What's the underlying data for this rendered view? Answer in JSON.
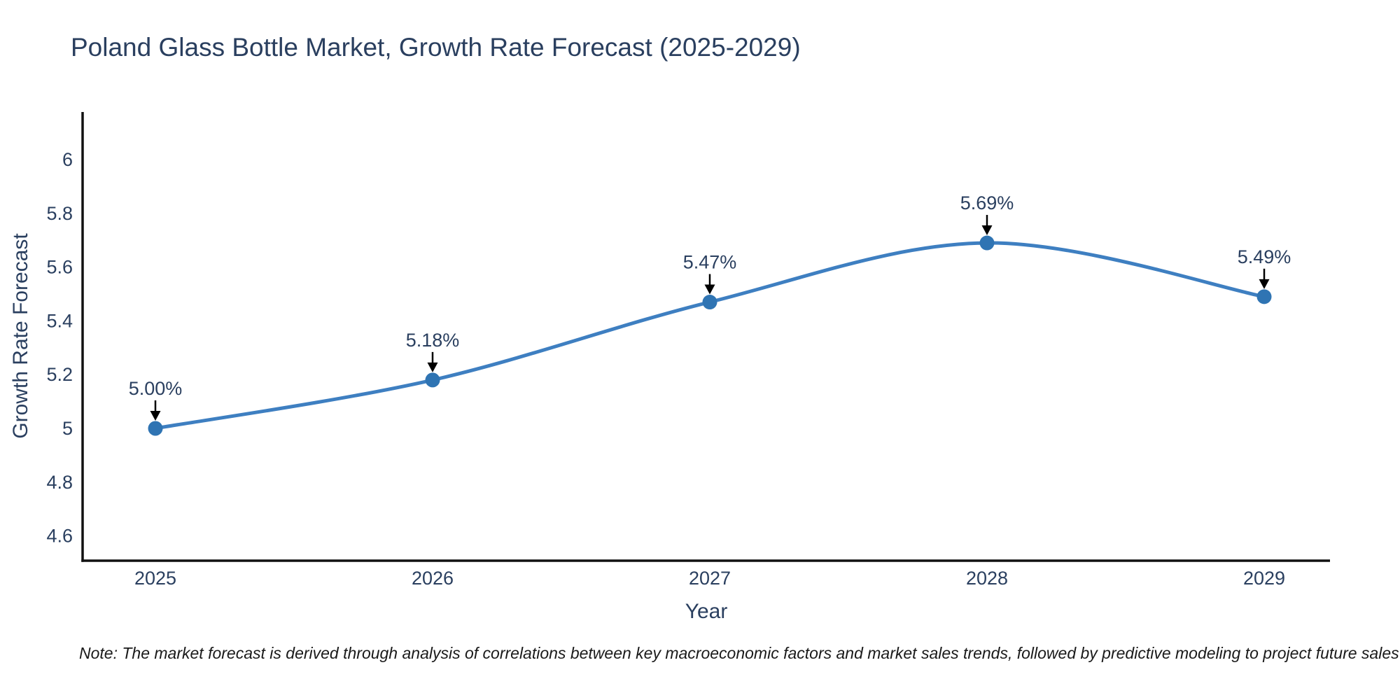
{
  "title": "Poland Glass Bottle Market, Growth Rate Forecast (2025-2029)",
  "note": "Note: The market forecast is derived through analysis of correlations between key macroeconomic factors and market sales trends, followed by predictive modeling to project future sales",
  "chart_data": {
    "type": "line",
    "title": "Poland Glass Bottle Market, Growth Rate Forecast (2025-2029)",
    "xlabel": "Year",
    "ylabel": "Growth Rate Forecast",
    "categories": [
      "2025",
      "2026",
      "2027",
      "2028",
      "2029"
    ],
    "values": [
      5.0,
      5.18,
      5.47,
      5.69,
      5.49
    ],
    "point_labels": [
      "5.00%",
      "5.18%",
      "5.47%",
      "5.69%",
      "5.49%"
    ],
    "ytick_values": [
      4.6,
      4.8,
      5.0,
      5.2,
      5.4,
      5.6,
      5.8,
      6.0
    ],
    "ytick_labels": [
      "4.6",
      "4.8",
      "5",
      "5.2",
      "5.4",
      "5.6",
      "5.8",
      "6"
    ],
    "ylim": [
      4.51,
      6.18
    ],
    "line_shape": "spline",
    "grid": false,
    "legend_position": "none",
    "annotations_have_arrows": true,
    "colors": {
      "line": "#3e7fc1",
      "marker": "#2f74b3",
      "axis_line": "#111111",
      "text": "#2a3f5f",
      "annotation_text": "#2a3f5f",
      "annotation_arrow": "#000000"
    }
  }
}
